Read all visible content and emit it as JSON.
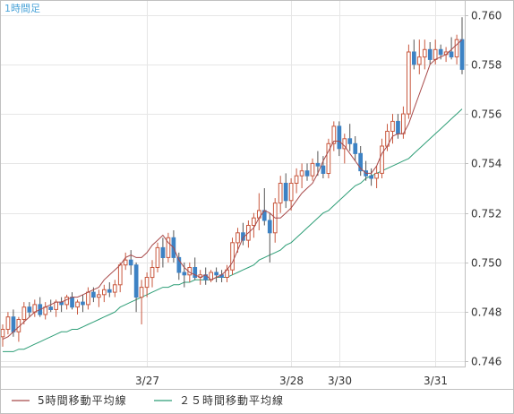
{
  "chart_data": {
    "type": "candlestick",
    "title": "1時間足",
    "ylim": [
      0.7458,
      0.7606
    ],
    "y_ticks": [
      "0.760",
      "0.758",
      "0.756",
      "0.754",
      "0.752",
      "0.750",
      "0.748",
      "0.746"
    ],
    "x_ticks": [
      {
        "label": "3/27",
        "index": 27
      },
      {
        "label": "3/28",
        "index": 54
      },
      {
        "label": "3/30",
        "index": 63
      },
      {
        "label": "3/31",
        "index": 81
      }
    ],
    "grid": true,
    "legend_position": "bottom-left",
    "colors": {
      "up": "#c8583e",
      "down": "#3d82c4",
      "ma5": "#a84a4a",
      "ma25": "#2e9e77",
      "grid": "#e6e6e6",
      "frame": "#c0c0c0",
      "title": "#4aa3d8"
    },
    "series": [
      {
        "name": "5時間移動平均線",
        "color": "#a84a4a",
        "type": "ma",
        "period": 5
      },
      {
        "name": "２５時間移動平均線",
        "color": "#2e9e77",
        "type": "ma",
        "period": 25
      }
    ],
    "ma5": [
      0.7469,
      0.747,
      0.7472,
      0.7474,
      0.7476,
      0.7478,
      0.748,
      0.7481,
      0.7482,
      0.7483,
      0.7484,
      0.7484,
      0.7485,
      0.7486,
      0.7486,
      0.7487,
      0.7488,
      0.7489,
      0.749,
      0.7493,
      0.7495,
      0.7497,
      0.7499,
      0.7502,
      0.7503,
      0.7502,
      0.7502,
      0.7504,
      0.7507,
      0.7509,
      0.7511,
      0.7508,
      0.7506,
      0.7501,
      0.7498,
      0.7496,
      0.7495,
      0.7494,
      0.7495,
      0.7493,
      0.7494,
      0.7495,
      0.7497,
      0.75,
      0.7505,
      0.751,
      0.7512,
      0.7514,
      0.7518,
      0.7521,
      0.752,
      0.7518,
      0.7518,
      0.752,
      0.7522,
      0.7525,
      0.7528,
      0.753,
      0.7532,
      0.7536,
      0.7541,
      0.7545,
      0.7549,
      0.7549,
      0.7547,
      0.7544,
      0.7541,
      0.7538,
      0.7536,
      0.7536,
      0.7539,
      0.7544,
      0.7547,
      0.7551,
      0.7552,
      0.7552,
      0.7556,
      0.7562,
      0.7568,
      0.7574,
      0.758,
      0.7582,
      0.7583,
      0.7584,
      0.7586,
      0.7588,
      0.759
    ],
    "ma25": [
      0.7464,
      0.7464,
      0.7464,
      0.7465,
      0.7465,
      0.7466,
      0.7467,
      0.7468,
      0.7469,
      0.747,
      0.7471,
      0.7472,
      0.7472,
      0.7473,
      0.7473,
      0.7474,
      0.7475,
      0.7476,
      0.7477,
      0.7478,
      0.7479,
      0.748,
      0.7482,
      0.7483,
      0.7484,
      0.7485,
      0.7486,
      0.7487,
      0.7488,
      0.7489,
      0.749,
      0.749,
      0.7491,
      0.7491,
      0.7492,
      0.7492,
      0.7493,
      0.7493,
      0.7493,
      0.7493,
      0.7494,
      0.7494,
      0.7494,
      0.7495,
      0.7496,
      0.7497,
      0.7498,
      0.7499,
      0.7501,
      0.7502,
      0.7503,
      0.7504,
      0.7505,
      0.7507,
      0.7508,
      0.751,
      0.7512,
      0.7514,
      0.7516,
      0.7518,
      0.752,
      0.7521,
      0.7523,
      0.7525,
      0.7527,
      0.7529,
      0.7531,
      0.7532,
      0.7534,
      0.7535,
      0.7536,
      0.7537,
      0.7538,
      0.7539,
      0.754,
      0.7541,
      0.7542,
      0.7544,
      0.7546,
      0.7548,
      0.755,
      0.7552,
      0.7554,
      0.7556,
      0.7558,
      0.756,
      0.7562
    ],
    "candles": [
      [
        0.747,
        0.7475,
        0.7466,
        0.7473
      ],
      [
        0.7473,
        0.748,
        0.7471,
        0.7478
      ],
      [
        0.7478,
        0.7481,
        0.747,
        0.7472
      ],
      [
        0.7472,
        0.7478,
        0.7468,
        0.7477
      ],
      [
        0.7477,
        0.7484,
        0.7475,
        0.7482
      ],
      [
        0.7482,
        0.7484,
        0.7478,
        0.748
      ],
      [
        0.748,
        0.7485,
        0.7478,
        0.7483
      ],
      [
        0.7483,
        0.7486,
        0.7478,
        0.7479
      ],
      [
        0.7479,
        0.7484,
        0.7477,
        0.7482
      ],
      [
        0.7482,
        0.7485,
        0.748,
        0.7481
      ],
      [
        0.7481,
        0.7485,
        0.7478,
        0.7484
      ],
      [
        0.7484,
        0.7486,
        0.748,
        0.7483
      ],
      [
        0.7483,
        0.7487,
        0.7481,
        0.7486
      ],
      [
        0.7486,
        0.7488,
        0.7481,
        0.7482
      ],
      [
        0.7482,
        0.7485,
        0.7479,
        0.7484
      ],
      [
        0.7484,
        0.7487,
        0.748,
        0.7483
      ],
      [
        0.7483,
        0.749,
        0.7481,
        0.7488
      ],
      [
        0.7488,
        0.749,
        0.7484,
        0.7486
      ],
      [
        0.7486,
        0.7489,
        0.7482,
        0.7487
      ],
      [
        0.7487,
        0.7491,
        0.7484,
        0.7489
      ],
      [
        0.7489,
        0.7492,
        0.7486,
        0.7488
      ],
      [
        0.7488,
        0.7493,
        0.7486,
        0.7491
      ],
      [
        0.7491,
        0.75,
        0.7488,
        0.7499
      ],
      [
        0.7499,
        0.7504,
        0.7497,
        0.7501
      ],
      [
        0.7501,
        0.7505,
        0.7495,
        0.7499
      ],
      [
        0.7499,
        0.75,
        0.748,
        0.7486
      ],
      [
        0.7486,
        0.7493,
        0.7475,
        0.749
      ],
      [
        0.749,
        0.7496,
        0.7486,
        0.7494
      ],
      [
        0.7494,
        0.7501,
        0.749,
        0.7498
      ],
      [
        0.7498,
        0.7508,
        0.7496,
        0.7506
      ],
      [
        0.7506,
        0.751,
        0.7498,
        0.7502
      ],
      [
        0.7502,
        0.7512,
        0.75,
        0.751
      ],
      [
        0.751,
        0.7513,
        0.75,
        0.7502
      ],
      [
        0.7502,
        0.7504,
        0.7493,
        0.7496
      ],
      [
        0.7496,
        0.75,
        0.749,
        0.7495
      ],
      [
        0.7495,
        0.75,
        0.7492,
        0.7498
      ],
      [
        0.7498,
        0.7502,
        0.7493,
        0.7494
      ],
      [
        0.7494,
        0.7497,
        0.7491,
        0.7495
      ],
      [
        0.7495,
        0.7498,
        0.7491,
        0.7493
      ],
      [
        0.7493,
        0.7497,
        0.7492,
        0.7496
      ],
      [
        0.7496,
        0.7498,
        0.7492,
        0.7495
      ],
      [
        0.7495,
        0.7497,
        0.7492,
        0.7494
      ],
      [
        0.7494,
        0.7499,
        0.7492,
        0.7497
      ],
      [
        0.7497,
        0.751,
        0.7495,
        0.7508
      ],
      [
        0.7508,
        0.7514,
        0.7504,
        0.7512
      ],
      [
        0.7512,
        0.7516,
        0.7507,
        0.7509
      ],
      [
        0.7509,
        0.7517,
        0.7506,
        0.7515
      ],
      [
        0.7515,
        0.752,
        0.751,
        0.7518
      ],
      [
        0.7518,
        0.7528,
        0.7513,
        0.7521
      ],
      [
        0.7521,
        0.753,
        0.7515,
        0.7517
      ],
      [
        0.7517,
        0.752,
        0.75,
        0.7512
      ],
      [
        0.7512,
        0.7526,
        0.7508,
        0.7524
      ],
      [
        0.7524,
        0.7535,
        0.752,
        0.7532
      ],
      [
        0.7532,
        0.7536,
        0.7522,
        0.7525
      ],
      [
        0.7525,
        0.7534,
        0.7521,
        0.7532
      ],
      [
        0.7532,
        0.7538,
        0.7528,
        0.7535
      ],
      [
        0.7535,
        0.754,
        0.753,
        0.7537
      ],
      [
        0.7537,
        0.754,
        0.7533,
        0.7535
      ],
      [
        0.7535,
        0.7542,
        0.7533,
        0.754
      ],
      [
        0.754,
        0.7545,
        0.7535,
        0.7539
      ],
      [
        0.7539,
        0.7543,
        0.7534,
        0.7536
      ],
      [
        0.7536,
        0.755,
        0.7534,
        0.7548
      ],
      [
        0.7548,
        0.7557,
        0.7545,
        0.7555
      ],
      [
        0.7555,
        0.7557,
        0.7543,
        0.7546
      ],
      [
        0.7546,
        0.7552,
        0.754,
        0.755
      ],
      [
        0.755,
        0.7556,
        0.7545,
        0.7548
      ],
      [
        0.7548,
        0.7551,
        0.7541,
        0.7544
      ],
      [
        0.7544,
        0.7547,
        0.7535,
        0.7537
      ],
      [
        0.7537,
        0.7541,
        0.7533,
        0.7535
      ],
      [
        0.7535,
        0.7538,
        0.7531,
        0.7534
      ],
      [
        0.7534,
        0.7539,
        0.753,
        0.7536
      ],
      [
        0.7536,
        0.755,
        0.7534,
        0.7547
      ],
      [
        0.7547,
        0.7556,
        0.7545,
        0.7553
      ],
      [
        0.7553,
        0.756,
        0.7548,
        0.7557
      ],
      [
        0.7557,
        0.756,
        0.755,
        0.7552
      ],
      [
        0.7552,
        0.7563,
        0.755,
        0.756
      ],
      [
        0.756,
        0.7588,
        0.7558,
        0.7585
      ],
      [
        0.7585,
        0.759,
        0.7578,
        0.758
      ],
      [
        0.758,
        0.759,
        0.7576,
        0.7583
      ],
      [
        0.7583,
        0.759,
        0.7578,
        0.7586
      ],
      [
        0.7586,
        0.7589,
        0.758,
        0.7582
      ],
      [
        0.7582,
        0.759,
        0.758,
        0.7586
      ],
      [
        0.7586,
        0.7588,
        0.7582,
        0.7584
      ],
      [
        0.7584,
        0.7587,
        0.7581,
        0.7585
      ],
      [
        0.7585,
        0.7591,
        0.7582,
        0.7583
      ],
      [
        0.7583,
        0.7592,
        0.758,
        0.759
      ],
      [
        0.759,
        0.7599,
        0.7576,
        0.7578
      ]
    ]
  }
}
